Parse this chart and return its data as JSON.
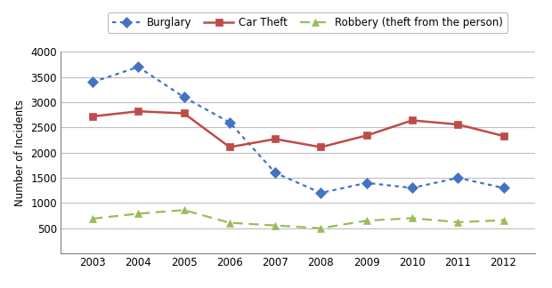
{
  "years": [
    2003,
    2004,
    2005,
    2006,
    2007,
    2008,
    2009,
    2010,
    2011,
    2012
  ],
  "burglary": [
    3400,
    3700,
    3100,
    2600,
    1600,
    1200,
    1400,
    1300,
    1500,
    1300
  ],
  "car_theft": [
    2720,
    2820,
    2780,
    2110,
    2270,
    2110,
    2340,
    2640,
    2560,
    2330
  ],
  "robbery": [
    690,
    790,
    860,
    610,
    555,
    500,
    650,
    700,
    620,
    660
  ],
  "burglary_color": "#4472C4",
  "car_theft_color": "#BE4B48",
  "robbery_color": "#9BBB59",
  "ylabel": "Number of Incidents",
  "ylim": [
    0,
    4000
  ],
  "yticks": [
    0,
    500,
    1000,
    1500,
    2000,
    2500,
    3000,
    3500,
    4000
  ],
  "legend_labels": [
    "Burglary",
    "Car Theft",
    "Robbery (theft from the person)"
  ],
  "background_color": "#ffffff",
  "grid_color": "#bfbfbf",
  "spine_color": "#808080"
}
